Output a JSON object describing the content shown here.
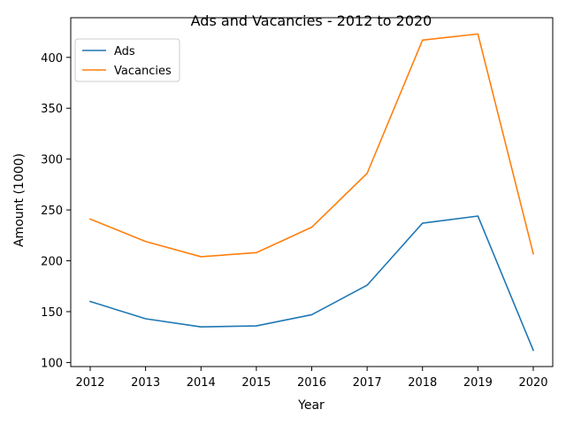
{
  "chart_data": {
    "type": "line",
    "title": "Ads and Vacancies - 2012 to 2020",
    "xlabel": "Year",
    "ylabel": "Amount (1000)",
    "x": [
      "2012",
      "2013",
      "2014",
      "2015",
      "2016",
      "2017",
      "2018",
      "2019",
      "2020"
    ],
    "series": [
      {
        "name": "Ads",
        "color": "#1f77b4",
        "values": [
          160,
          143,
          135,
          136,
          147,
          176,
          237,
          244,
          112
        ]
      },
      {
        "name": "Vacancies",
        "color": "#ff7f0e",
        "values": [
          241,
          219,
          204,
          208,
          233,
          286,
          417,
          423,
          207
        ]
      }
    ],
    "yticks": [
      100,
      150,
      200,
      250,
      300,
      350,
      400
    ],
    "ylim": [
      96,
      439
    ],
    "grid": false,
    "legend": "top-left"
  }
}
